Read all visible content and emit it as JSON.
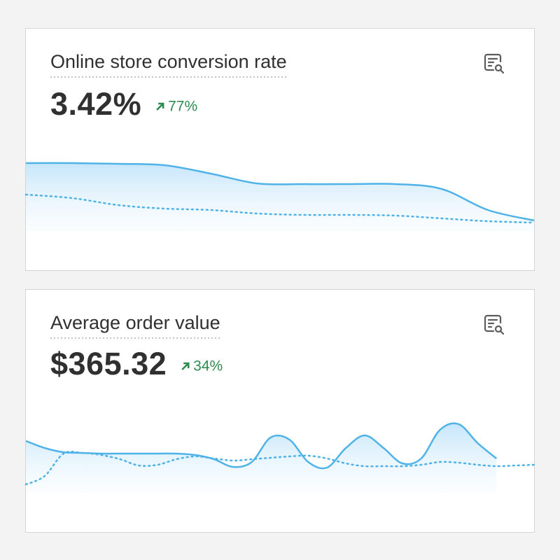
{
  "cards": [
    {
      "title": "Online store conversion rate",
      "value": "3.42%",
      "change": "77%",
      "trend": {
        "current": [
          97,
          97,
          96,
          94,
          82,
          68,
          67,
          67,
          67,
          60,
          30,
          15
        ],
        "previous": [
          52,
          47,
          37,
          32,
          30,
          25,
          23,
          23,
          22,
          18,
          14,
          12
        ]
      }
    },
    {
      "title": "Average order value",
      "value": "$365.32",
      "change": "34%",
      "trend": {
        "current": [
          70,
          60,
          54,
          53,
          52,
          52,
          52,
          52,
          52,
          50,
          44,
          33,
          40,
          75,
          72,
          40,
          32,
          60,
          78,
          60,
          38,
          45,
          86,
          94,
          67,
          45,
          null,
          null
        ],
        "previous": [
          8,
          20,
          52,
          53,
          50,
          44,
          35,
          36,
          44,
          48,
          45,
          42,
          44,
          46,
          48,
          49,
          45,
          38,
          34,
          34,
          34,
          36,
          40,
          39,
          36,
          34,
          35,
          36
        ]
      }
    }
  ]
}
